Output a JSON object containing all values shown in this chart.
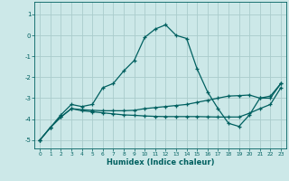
{
  "xlabel": "Humidex (Indice chaleur)",
  "background_color": "#cce8e8",
  "grid_color": "#aacccc",
  "line_color": "#006060",
  "xlim": [
    -0.5,
    23.5
  ],
  "ylim": [
    -5.4,
    1.6
  ],
  "yticks": [
    -5,
    -4,
    -3,
    -2,
    -1,
    0,
    1
  ],
  "xticks": [
    0,
    1,
    2,
    3,
    4,
    5,
    6,
    7,
    8,
    9,
    10,
    11,
    12,
    13,
    14,
    15,
    16,
    17,
    18,
    19,
    20,
    21,
    22,
    23
  ],
  "line1_x": [
    0,
    1,
    2,
    3,
    4,
    5,
    6,
    7,
    8,
    9,
    10,
    11,
    12,
    13,
    14,
    15,
    16,
    17,
    18,
    19,
    20,
    21,
    22,
    23
  ],
  "line1_y": [
    -5.0,
    -4.4,
    -3.8,
    -3.3,
    -3.4,
    -3.3,
    -2.5,
    -2.3,
    -1.7,
    -1.2,
    -0.1,
    0.3,
    0.5,
    0.0,
    -0.15,
    -1.6,
    -2.7,
    -3.5,
    -4.2,
    -4.35,
    -3.8,
    -3.0,
    -2.9,
    -2.3
  ],
  "line2_x": [
    0,
    1,
    2,
    3,
    4,
    5,
    6,
    7,
    8,
    9,
    10,
    11,
    12,
    13,
    14,
    15,
    16,
    17,
    18,
    19,
    20,
    21,
    22,
    23
  ],
  "line2_y": [
    -5.0,
    -4.4,
    -3.9,
    -3.5,
    -3.6,
    -3.65,
    -3.7,
    -3.75,
    -3.8,
    -3.82,
    -3.85,
    -3.87,
    -3.88,
    -3.88,
    -3.88,
    -3.88,
    -3.89,
    -3.9,
    -3.9,
    -3.9,
    -3.72,
    -3.5,
    -3.3,
    -2.5
  ],
  "line3_x": [
    0,
    1,
    2,
    3,
    4,
    5,
    6,
    7,
    8,
    9,
    10,
    11,
    12,
    13,
    14,
    15,
    16,
    17,
    18,
    19,
    20,
    21,
    22,
    23
  ],
  "line3_y": [
    -5.0,
    -4.4,
    -3.9,
    -3.5,
    -3.55,
    -3.58,
    -3.6,
    -3.6,
    -3.6,
    -3.58,
    -3.5,
    -3.45,
    -3.4,
    -3.35,
    -3.3,
    -3.2,
    -3.1,
    -3.0,
    -2.9,
    -2.88,
    -2.85,
    -3.0,
    -3.0,
    -2.3
  ]
}
